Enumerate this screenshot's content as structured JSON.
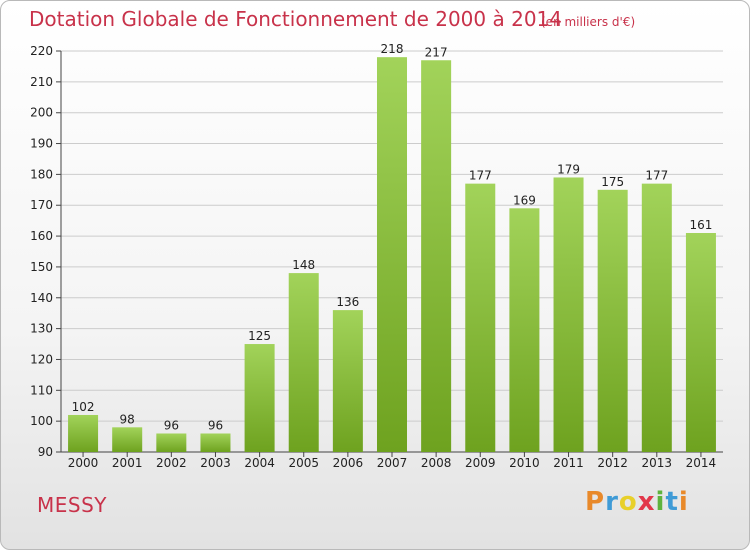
{
  "header": {
    "title": "Dotation Globale de Fonctionnement de 2000 à 2014",
    "subtitle": "(en milliers d'€)"
  },
  "footer": {
    "commune": "MESSY",
    "brand_letters": [
      "P",
      "r",
      "o",
      "x",
      "i",
      "t",
      "i"
    ]
  },
  "colors": {
    "title": "#c8324a",
    "bar_light": "#a2d35a",
    "bar_dark": "#6ea21f",
    "grid": "#cccccc"
  },
  "chart_data": {
    "type": "bar",
    "title": "Dotation Globale de Fonctionnement de 2000 à 2014",
    "subtitle": "(en milliers d'€)",
    "xlabel": "",
    "ylabel": "",
    "ylim": [
      90,
      220
    ],
    "yticks": [
      90,
      100,
      110,
      120,
      130,
      140,
      150,
      160,
      170,
      180,
      190,
      200,
      210,
      220
    ],
    "grid": true,
    "categories": [
      "2000",
      "2001",
      "2002",
      "2003",
      "2004",
      "2005",
      "2006",
      "2007",
      "2008",
      "2009",
      "2010",
      "2011",
      "2012",
      "2013",
      "2014"
    ],
    "values": [
      102,
      98,
      96,
      96,
      125,
      148,
      136,
      218,
      217,
      177,
      169,
      179,
      175,
      177,
      161
    ]
  }
}
